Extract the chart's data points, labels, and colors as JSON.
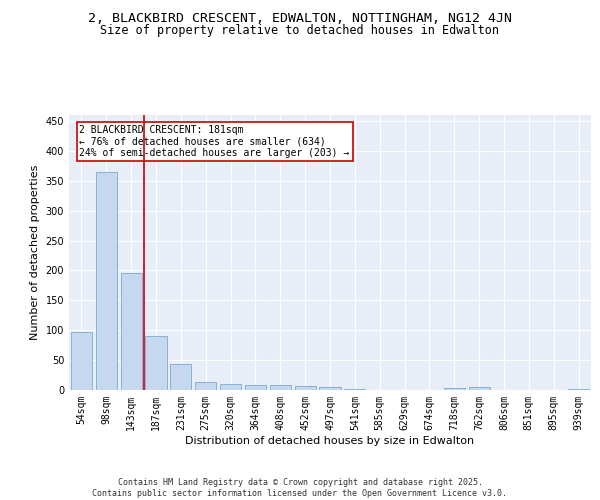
{
  "title_line1": "2, BLACKBIRD CRESCENT, EDWALTON, NOTTINGHAM, NG12 4JN",
  "title_line2": "Size of property relative to detached houses in Edwalton",
  "xlabel": "Distribution of detached houses by size in Edwalton",
  "ylabel": "Number of detached properties",
  "categories": [
    "54sqm",
    "98sqm",
    "143sqm",
    "187sqm",
    "231sqm",
    "275sqm",
    "320sqm",
    "364sqm",
    "408sqm",
    "452sqm",
    "497sqm",
    "541sqm",
    "585sqm",
    "629sqm",
    "674sqm",
    "718sqm",
    "762sqm",
    "806sqm",
    "851sqm",
    "895sqm",
    "939sqm"
  ],
  "values": [
    97,
    365,
    195,
    91,
    44,
    13,
    10,
    9,
    8,
    6,
    5,
    1,
    0,
    0,
    0,
    4,
    5,
    0,
    0,
    0,
    2
  ],
  "bar_color": "#c5d8f0",
  "bar_edge_color": "#7aaad0",
  "background_color": "#e8eef8",
  "grid_color": "#ffffff",
  "vline_x_idx": 2.5,
  "vline_color": "#cc0000",
  "annotation_text": "2 BLACKBIRD CRESCENT: 181sqm\n← 76% of detached houses are smaller (634)\n24% of semi-detached houses are larger (203) →",
  "annotation_box_edgecolor": "#cc0000",
  "annotation_box_facecolor": "#ffffff",
  "ylim": [
    0,
    460
  ],
  "yticks": [
    0,
    50,
    100,
    150,
    200,
    250,
    300,
    350,
    400,
    450
  ],
  "footer_text": "Contains HM Land Registry data © Crown copyright and database right 2025.\nContains public sector information licensed under the Open Government Licence v3.0.",
  "title_fontsize": 9.5,
  "subtitle_fontsize": 8.5,
  "tick_fontsize": 7,
  "label_fontsize": 8,
  "annotation_fontsize": 7,
  "footer_fontsize": 6
}
